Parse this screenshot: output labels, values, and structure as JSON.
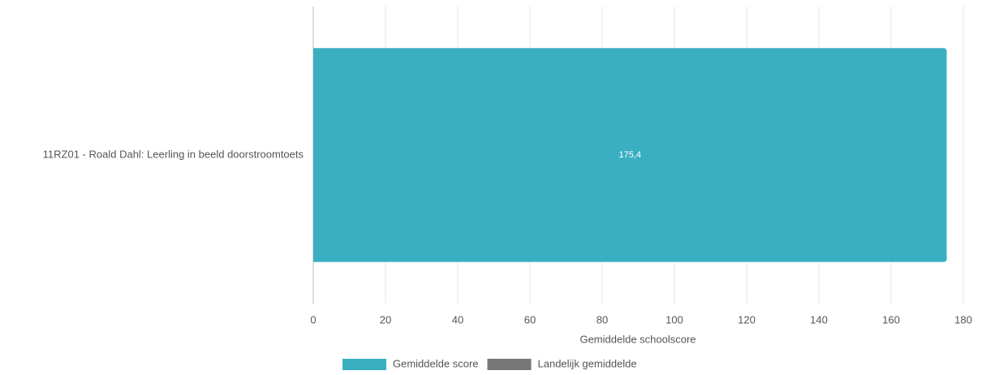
{
  "chart_data": {
    "type": "bar",
    "orientation": "horizontal",
    "categories": [
      "11RZ01 - Roald Dahl: Leerling in beeld doorstroomtoets"
    ],
    "series": [
      {
        "name": "Gemiddelde score",
        "color": "#3aafc2",
        "values": [
          175.4
        ],
        "value_labels": [
          "175,4"
        ]
      },
      {
        "name": "Landelijk gemiddelde",
        "color": "#777777",
        "values": [
          null
        ]
      }
    ],
    "xlabel": "Gemiddelde schoolscore",
    "xlim": [
      0,
      180
    ],
    "xticks": [
      0,
      20,
      40,
      60,
      80,
      100,
      120,
      140,
      160,
      180
    ],
    "grid": true,
    "legend": "bottom"
  }
}
